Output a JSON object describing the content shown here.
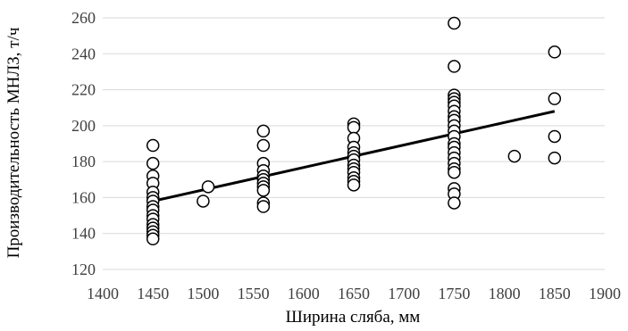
{
  "chart_data": {
    "type": "scatter",
    "title": "",
    "xlabel": "Ширина сляба, мм",
    "ylabel": "Производительность МНЛЗ, т/ч",
    "xlim": [
      1400,
      1900
    ],
    "ylim": [
      120,
      260
    ],
    "x_ticks": [
      1400,
      1450,
      1500,
      1550,
      1600,
      1650,
      1700,
      1750,
      1800,
      1850,
      1900
    ],
    "y_ticks": [
      120,
      140,
      160,
      180,
      200,
      220,
      240,
      260
    ],
    "grid": "horizontal",
    "legend": "none",
    "series": [
      {
        "marker": "open-circle",
        "points": [
          [
            1450,
            189
          ],
          [
            1450,
            179
          ],
          [
            1450,
            172
          ],
          [
            1450,
            168
          ],
          [
            1450,
            163
          ],
          [
            1450,
            160
          ],
          [
            1450,
            158
          ],
          [
            1450,
            155
          ],
          [
            1450,
            153
          ],
          [
            1450,
            150
          ],
          [
            1450,
            148
          ],
          [
            1450,
            145
          ],
          [
            1450,
            143
          ],
          [
            1450,
            141
          ],
          [
            1450,
            139
          ],
          [
            1450,
            137
          ],
          [
            1500,
            158
          ],
          [
            1505,
            166
          ],
          [
            1560,
            197
          ],
          [
            1560,
            189
          ],
          [
            1560,
            179
          ],
          [
            1560,
            175
          ],
          [
            1560,
            172
          ],
          [
            1560,
            170
          ],
          [
            1560,
            168
          ],
          [
            1560,
            166
          ],
          [
            1560,
            164
          ],
          [
            1560,
            157
          ],
          [
            1560,
            155
          ],
          [
            1650,
            201
          ],
          [
            1650,
            199
          ],
          [
            1650,
            193
          ],
          [
            1650,
            188
          ],
          [
            1650,
            185
          ],
          [
            1650,
            183
          ],
          [
            1650,
            181
          ],
          [
            1650,
            178
          ],
          [
            1650,
            176
          ],
          [
            1650,
            174
          ],
          [
            1650,
            171
          ],
          [
            1650,
            169
          ],
          [
            1650,
            167
          ],
          [
            1750,
            257
          ],
          [
            1750,
            233
          ],
          [
            1750,
            217
          ],
          [
            1750,
            215
          ],
          [
            1750,
            213
          ],
          [
            1750,
            211
          ],
          [
            1750,
            208
          ],
          [
            1750,
            205
          ],
          [
            1750,
            203
          ],
          [
            1750,
            200
          ],
          [
            1750,
            197
          ],
          [
            1750,
            194
          ],
          [
            1750,
            190
          ],
          [
            1750,
            188
          ],
          [
            1750,
            185
          ],
          [
            1750,
            182
          ],
          [
            1750,
            179
          ],
          [
            1750,
            176
          ],
          [
            1750,
            174
          ],
          [
            1750,
            165
          ],
          [
            1750,
            162
          ],
          [
            1750,
            157
          ],
          [
            1810,
            183
          ],
          [
            1850,
            241
          ],
          [
            1850,
            215
          ],
          [
            1850,
            194
          ],
          [
            1850,
            182
          ]
        ]
      }
    ],
    "trendline": {
      "type": "linear",
      "points": [
        [
          1450,
          158
        ],
        [
          1850,
          208
        ]
      ]
    }
  }
}
